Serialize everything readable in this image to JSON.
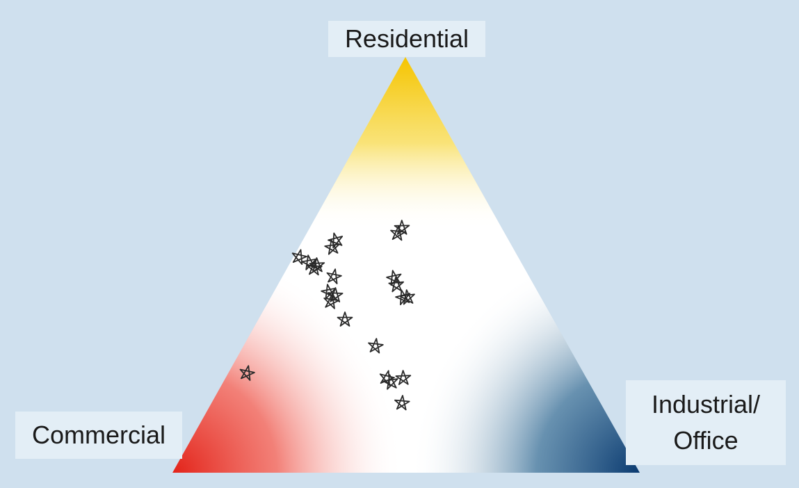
{
  "vertices": {
    "top": "Residential",
    "left": "Commercial",
    "right_line1": "Industrial/",
    "right_line2": "Office"
  },
  "colors": {
    "background": "#cfe0ee",
    "label_box": "#e3eef6",
    "residential": "#f5c400",
    "commercial": "#e8281c",
    "industrial_office": "#0a3f75",
    "marker": "#2a2a2a"
  },
  "marker_icon": "star-icon",
  "marker_count": 23
}
